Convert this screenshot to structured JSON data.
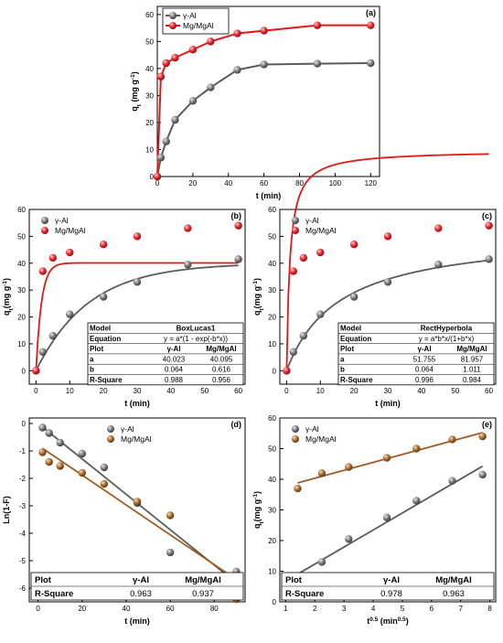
{
  "colors": {
    "gray": "#5f5f5f",
    "red": "#e3262b",
    "brown": "#a86a2c",
    "fitGray": "#5a5a5a",
    "fitRed": "#e01818",
    "fitBrown": "#a05a22"
  },
  "chart_data": [
    {
      "label": "(a)",
      "type": "line",
      "xlabel": "t (min)",
      "ylabel": "qt (mg g-1)",
      "xlim": [
        0,
        125
      ],
      "ylim": [
        0,
        63
      ],
      "xticks": [
        "0",
        "20",
        "40",
        "60",
        "80",
        "100",
        "120"
      ],
      "yticks": [
        "0",
        "10",
        "20",
        "30",
        "40",
        "50",
        "60"
      ],
      "legend": "top-left",
      "series": [
        {
          "name": "γ-Al",
          "x": [
            0,
            2,
            5,
            10,
            20,
            30,
            45,
            60,
            90,
            120
          ],
          "y": [
            0,
            7,
            13,
            21,
            28,
            33,
            39.5,
            41.5,
            41.8,
            42
          ]
        },
        {
          "name": "Mg/MgAl",
          "x": [
            0,
            2,
            5,
            10,
            20,
            30,
            45,
            60,
            90,
            120
          ],
          "y": [
            0,
            37,
            42,
            44,
            47,
            50,
            53,
            54,
            56,
            56
          ]
        }
      ]
    },
    {
      "label": "(b)",
      "type": "scatter",
      "xlabel": "t (min)",
      "ylabel": "qt(mg g-1)",
      "xlim": [
        -2,
        62
      ],
      "ylim": [
        -5,
        60
      ],
      "xticks": [
        "0",
        "10",
        "20",
        "30",
        "40",
        "50",
        "60"
      ],
      "yticks": [
        "0",
        "10",
        "20",
        "30",
        "40",
        "50",
        "60"
      ],
      "legend": "top-left",
      "series": [
        {
          "name": "γ-Al",
          "x": [
            0,
            2,
            5,
            10,
            20,
            30,
            45,
            60
          ],
          "y": [
            0,
            7,
            13,
            21,
            27.5,
            33,
            39.5,
            41.5
          ]
        },
        {
          "name": "Mg/MgAl",
          "x": [
            0,
            2,
            5,
            10,
            20,
            30,
            45,
            60
          ],
          "y": [
            0,
            37,
            42,
            44,
            47,
            50,
            53,
            54
          ]
        }
      ],
      "fit_table": {
        "rows": [
          [
            "Model",
            "BoxLucas1"
          ],
          [
            "Equation",
            "y = a*(1 - exp(-b*x))"
          ],
          [
            "Plot",
            "γ-Al",
            "Mg/MgAl"
          ],
          [
            "a",
            "40.023",
            "40.095"
          ],
          [
            "b",
            "0.064",
            "0.616"
          ],
          [
            "R-Square",
            "0.988",
            "0.956"
          ]
        ]
      }
    },
    {
      "label": "(c)",
      "type": "scatter",
      "xlabel": "t (min)",
      "ylabel": "qt(mg g-1)",
      "xlim": [
        -2,
        62
      ],
      "ylim": [
        -5,
        60
      ],
      "xticks": [
        "0",
        "10",
        "20",
        "30",
        "40",
        "50",
        "60"
      ],
      "yticks": [
        "0",
        "10",
        "20",
        "30",
        "40",
        "50",
        "60"
      ],
      "legend": "top-left",
      "series": [
        {
          "name": "γ-Al",
          "x": [
            0,
            2,
            5,
            10,
            20,
            30,
            45,
            60
          ],
          "y": [
            0,
            7,
            13,
            21,
            27.5,
            33,
            39.5,
            41.5
          ]
        },
        {
          "name": "Mg/MgAl",
          "x": [
            0,
            2,
            5,
            10,
            20,
            30,
            45,
            60
          ],
          "y": [
            0,
            37,
            42,
            44,
            47,
            50,
            53,
            54
          ]
        }
      ],
      "fit_table": {
        "rows": [
          [
            "Model",
            "RectHyperbola"
          ],
          [
            "Equation",
            "y = a*b*x/(1+b*x)"
          ],
          [
            "Plot",
            "γ-Al",
            "Mg/MgAl"
          ],
          [
            "a",
            "51.755",
            "81.957"
          ],
          [
            "b",
            "0.064",
            "1.011"
          ],
          [
            "R-Square",
            "0.996",
            "0.984"
          ]
        ]
      }
    },
    {
      "label": "(d)",
      "type": "scatter",
      "xlabel": "t (min)",
      "ylabel": "Ln(1-F)",
      "xlim": [
        -4,
        94
      ],
      "ylim": [
        -6.5,
        0.2
      ],
      "xticks": [
        "0",
        "20",
        "40",
        "60",
        "80"
      ],
      "yticks": [
        "0",
        "-1",
        "-2",
        "-3",
        "-4",
        "-5",
        "-6"
      ],
      "legend": "top-center",
      "series": [
        {
          "name": "γ-Al",
          "x": [
            2,
            5,
            10,
            20,
            30,
            45,
            60,
            90
          ],
          "y": [
            -0.15,
            -0.35,
            -0.7,
            -1.1,
            -1.6,
            -2.9,
            -4.7,
            -5.4
          ]
        },
        {
          "name": "Mg/MgAl",
          "x": [
            2,
            5,
            10,
            20,
            30,
            45,
            60,
            90
          ],
          "y": [
            -1.05,
            -1.4,
            -1.55,
            -1.8,
            -2.2,
            -2.85,
            -3.35,
            -6.4
          ]
        }
      ],
      "fit_table": {
        "rows": [
          [
            "Plot",
            "γ-Al",
            "Mg/MgAl"
          ],
          [
            "R-Square",
            "0.963",
            "0.937"
          ]
        ]
      }
    },
    {
      "label": "(e)",
      "type": "scatter",
      "xlabel": "t0.5 (min0.5)",
      "ylabel": "qt(mg g-1)",
      "xlim": [
        0.8,
        8.2
      ],
      "ylim": [
        0,
        60
      ],
      "xticks": [
        "1",
        "2",
        "3",
        "4",
        "5",
        "6",
        "7",
        "8"
      ],
      "yticks": [
        "0",
        "10",
        "20",
        "30",
        "40",
        "50",
        "60"
      ],
      "legend": "top-left",
      "series": [
        {
          "name": "γ-Al",
          "x": [
            1.41,
            2.24,
            3.16,
            4.47,
            5.48,
            6.71,
            7.75
          ],
          "y": [
            7,
            13,
            20.5,
            27.5,
            33,
            39.5,
            41.5
          ]
        },
        {
          "name": "Mg/MgAl",
          "x": [
            1.41,
            2.24,
            3.16,
            4.47,
            5.48,
            6.71,
            7.75
          ],
          "y": [
            37,
            42,
            44,
            47,
            50,
            53,
            54
          ]
        }
      ],
      "fit_table": {
        "rows": [
          [
            "Plot",
            "γ-Al",
            "Mg/MgAl"
          ],
          [
            "R-Square",
            "0.978",
            "0.963"
          ]
        ]
      }
    }
  ]
}
